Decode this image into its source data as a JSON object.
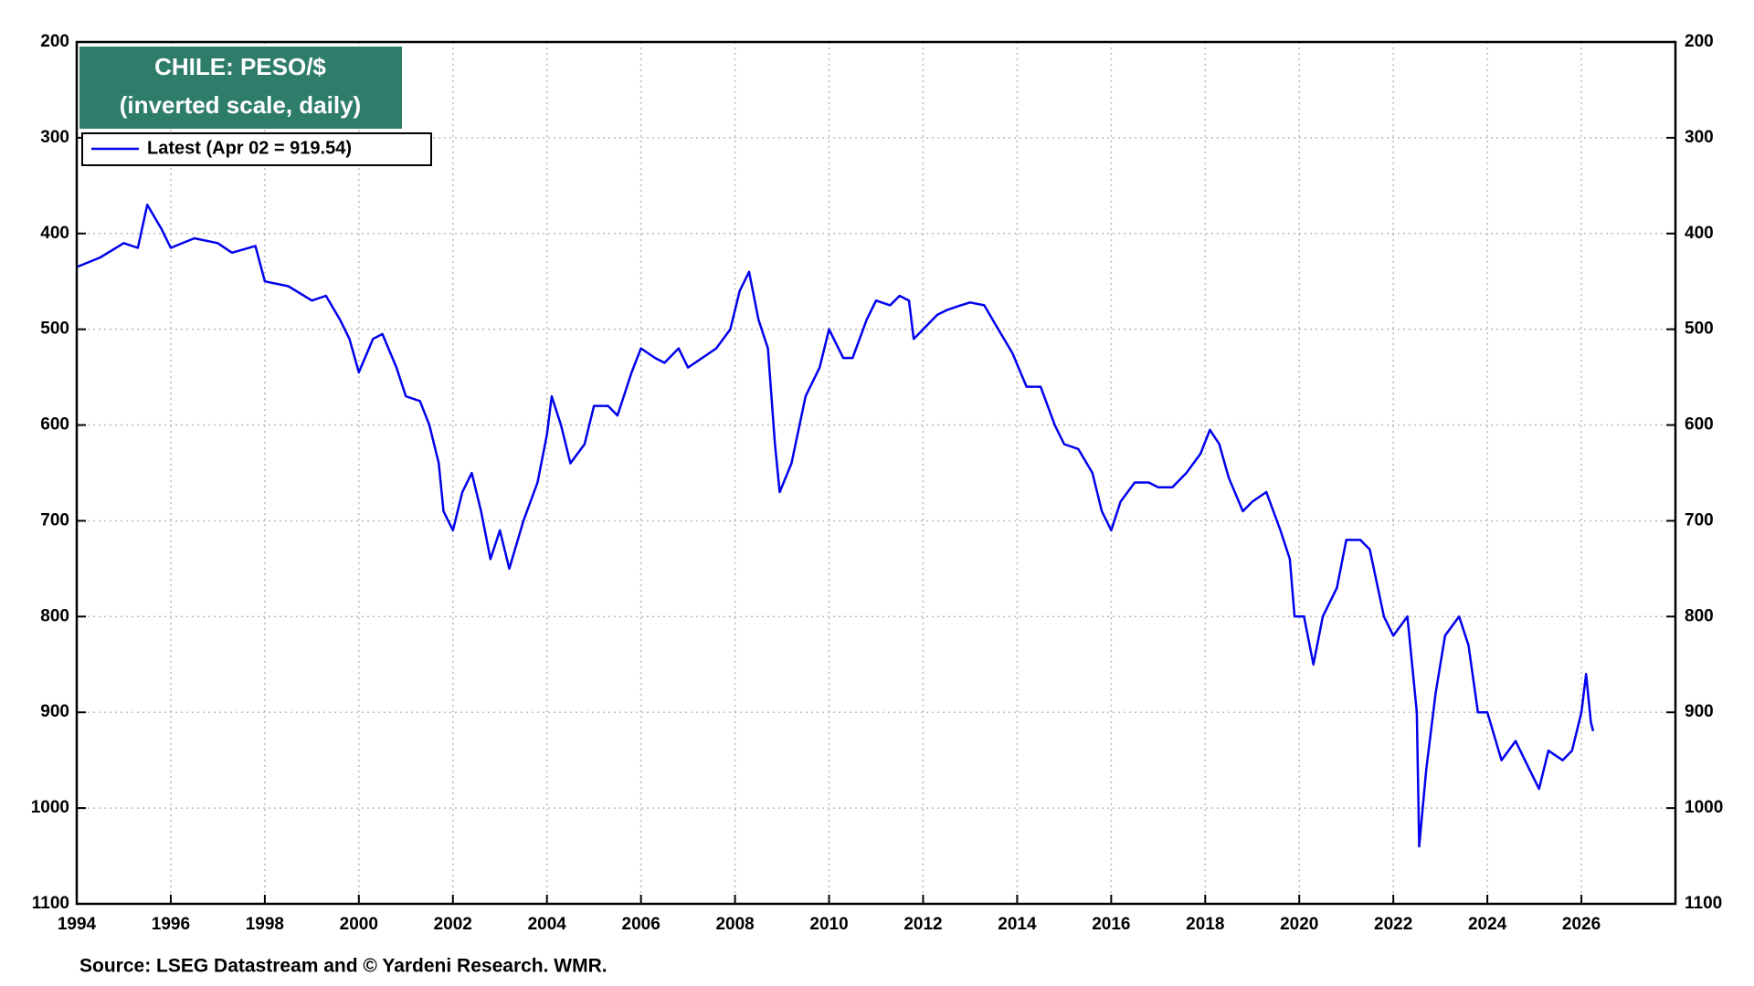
{
  "chart_data": {
    "type": "line",
    "title": "CHILE: PESO/$",
    "subtitle": "(inverted scale, daily)",
    "source": "Source: LSEG Datastream and © Yardeni Research. WMR.",
    "inverted_y": true,
    "grid": true,
    "legend": "upper left",
    "xlim": [
      1994,
      2028
    ],
    "xticks": [
      1994,
      1996,
      1998,
      2000,
      2002,
      2004,
      2006,
      2008,
      2010,
      2012,
      2014,
      2016,
      2018,
      2020,
      2022,
      2024,
      2026
    ],
    "ylim": [
      200,
      1100
    ],
    "yticks": [
      200,
      300,
      400,
      500,
      600,
      700,
      800,
      900,
      1000,
      1100
    ],
    "x": [
      1994.0,
      1994.5,
      1995.0,
      1995.3,
      1995.5,
      1995.8,
      1996.0,
      1996.5,
      1997.0,
      1997.3,
      1997.8,
      1998.0,
      1998.5,
      1999.0,
      1999.3,
      1999.6,
      1999.8,
      2000.0,
      2000.3,
      2000.5,
      2000.8,
      2001.0,
      2001.3,
      2001.5,
      2001.7,
      2001.8,
      2002.0,
      2002.2,
      2002.4,
      2002.6,
      2002.8,
      2003.0,
      2003.2,
      2003.5,
      2003.8,
      2004.0,
      2004.1,
      2004.3,
      2004.5,
      2004.8,
      2005.0,
      2005.3,
      2005.5,
      2005.8,
      2006.0,
      2006.3,
      2006.5,
      2006.8,
      2007.0,
      2007.3,
      2007.6,
      2007.9,
      2008.1,
      2008.3,
      2008.5,
      2008.7,
      2008.85,
      2008.95,
      2009.2,
      2009.5,
      2009.8,
      2010.0,
      2010.3,
      2010.5,
      2010.8,
      2011.0,
      2011.3,
      2011.5,
      2011.7,
      2011.8,
      2012.0,
      2012.3,
      2012.5,
      2012.8,
      2013.0,
      2013.3,
      2013.6,
      2013.9,
      2014.2,
      2014.5,
      2014.8,
      2015.0,
      2015.3,
      2015.6,
      2015.8,
      2016.0,
      2016.2,
      2016.5,
      2016.8,
      2017.0,
      2017.3,
      2017.6,
      2017.9,
      2018.1,
      2018.3,
      2018.5,
      2018.8,
      2019.0,
      2019.3,
      2019.6,
      2019.8,
      2019.9,
      2020.1,
      2020.3,
      2020.5,
      2020.8,
      2021.0,
      2021.3,
      2021.5,
      2021.8,
      2022.0,
      2022.3,
      2022.5,
      2022.55,
      2022.7,
      2022.9,
      2023.1,
      2023.4,
      2023.6,
      2023.8,
      2024.0,
      2024.3,
      2024.6,
      2024.9,
      2025.1,
      2025.3,
      2025.6,
      2025.8,
      2026.0,
      2026.1,
      2026.2,
      2026.25
    ],
    "series": [
      {
        "name": "Latest (Apr 02 = 919.54)",
        "color": "#0000ee",
        "values": [
          435,
          425,
          410,
          415,
          370,
          395,
          415,
          405,
          410,
          420,
          413,
          450,
          455,
          470,
          465,
          490,
          510,
          545,
          510,
          505,
          540,
          570,
          575,
          600,
          640,
          690,
          710,
          670,
          650,
          690,
          740,
          710,
          750,
          700,
          660,
          610,
          570,
          600,
          640,
          620,
          580,
          580,
          590,
          545,
          520,
          530,
          535,
          520,
          540,
          530,
          520,
          500,
          460,
          440,
          490,
          520,
          620,
          670,
          640,
          570,
          540,
          500,
          530,
          530,
          490,
          470,
          475,
          465,
          470,
          510,
          500,
          485,
          480,
          475,
          472,
          475,
          500,
          525,
          560,
          560,
          600,
          620,
          625,
          650,
          690,
          710,
          680,
          660,
          660,
          665,
          665,
          650,
          630,
          605,
          620,
          655,
          690,
          680,
          670,
          710,
          740,
          800,
          800,
          850,
          800,
          770,
          720,
          720,
          730,
          800,
          820,
          800,
          900,
          1040,
          960,
          880,
          820,
          800,
          830,
          900,
          900,
          950,
          930,
          960,
          980,
          940,
          950,
          940,
          900,
          860,
          910,
          919.54
        ]
      }
    ]
  }
}
